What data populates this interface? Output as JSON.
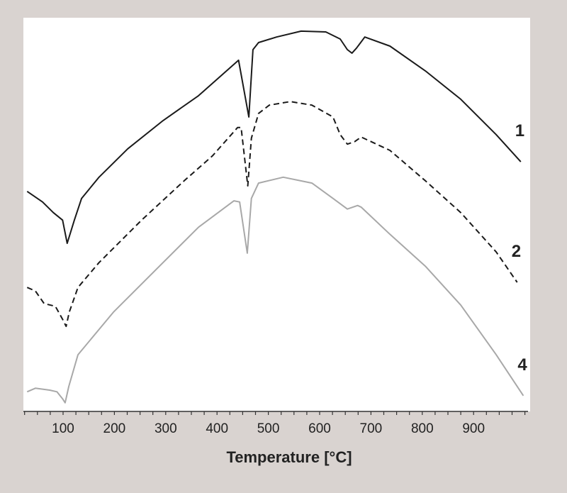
{
  "chart_data": {
    "type": "line",
    "title": "",
    "xlabel": "Temperature [°C]",
    "ylabel": "",
    "xlim": [
      25,
      1000
    ],
    "ylim": [
      0,
      100
    ],
    "xticks": [
      100,
      200,
      300,
      400,
      500,
      600,
      700,
      800,
      900
    ],
    "minor_tick_step": 25,
    "grid": false,
    "legend": "none",
    "series": [
      {
        "name": "1",
        "style": "solid",
        "color": "#1a1a1a",
        "x": [
          30,
          60,
          81,
          99,
          108,
          122,
          136,
          170,
          226,
          295,
          364,
          442,
          462,
          470,
          481,
          516,
          564,
          612,
          640,
          654,
          663,
          672,
          688,
          737,
          806,
          875,
          944,
          992
        ],
        "y": [
          55.9,
          53.2,
          50.5,
          48.6,
          42.7,
          48.6,
          54.1,
          59.5,
          66.7,
          73.9,
          80.2,
          89.2,
          74.8,
          91.9,
          93.7,
          95.1,
          96.6,
          96.4,
          94.6,
          91.9,
          91.0,
          92.3,
          95.1,
          92.8,
          86.5,
          79.3,
          70.3,
          63.4
        ]
      },
      {
        "name": "2",
        "style": "dashed",
        "color": "#1a1a1a",
        "x": [
          30,
          46,
          63,
          85,
          99,
          106,
          112,
          129,
          170,
          253,
          336,
          391,
          440,
          447,
          460,
          467,
          481,
          502,
          543,
          585,
          626,
          640,
          654,
          668,
          681,
          737,
          806,
          875,
          944,
          985
        ],
        "y": [
          31.5,
          30.6,
          27.4,
          26.7,
          23.4,
          21.6,
          25.2,
          31.5,
          37.8,
          48.6,
          58.6,
          64.9,
          72.1,
          72.1,
          57.3,
          69.4,
          75.7,
          77.8,
          78.7,
          77.8,
          74.8,
          70.3,
          67.9,
          68.5,
          69.7,
          66.3,
          58.6,
          50.5,
          40.5,
          32.8
        ]
      },
      {
        "name": "4",
        "style": "solid",
        "color": "#a8a8a8",
        "x": [
          30,
          46,
          74,
          88,
          99,
          104,
          111,
          129,
          198,
          281,
          364,
          433,
          444,
          459,
          467,
          481,
          529,
          585,
          626,
          654,
          674,
          681,
          737,
          806,
          875,
          944,
          997
        ],
        "y": [
          5.0,
          5.9,
          5.4,
          5.0,
          3.2,
          2.2,
          6.3,
          14.4,
          25.2,
          36.0,
          46.8,
          53.5,
          53.2,
          40.2,
          54.1,
          58.0,
          59.5,
          58.0,
          54.1,
          51.4,
          52.3,
          51.9,
          45.0,
          36.9,
          27.0,
          14.4,
          4.0
        ]
      }
    ]
  }
}
